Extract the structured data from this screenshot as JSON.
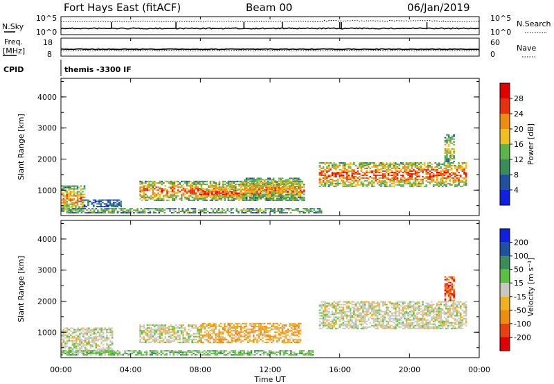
{
  "header": {
    "station": "Fort Hays East (fitACF)",
    "beam": "Beam 00",
    "date": "06/Jan/2019"
  },
  "strips": {
    "nsky_label": "N.Sky",
    "nsearch_label": "N.Search",
    "noise_scale_top": "10^5",
    "noise_scale_bottom": "10^0",
    "freq_label_1": "Freq.",
    "freq_label_2": "[MHz]",
    "freq_top": "18",
    "freq_bottom": "8",
    "nave_label": "Nave",
    "nave_top": "60",
    "nave_bottom": "0",
    "cpid_label": "CPID",
    "cpid_value": "themis -3300 IF"
  },
  "chart_data": [
    {
      "type": "heatmap",
      "name_in_plot": "power",
      "ylabel": "Slant Range [km]",
      "yticks": [
        "1000",
        "2000",
        "3000",
        "4000"
      ],
      "ylim": [
        180,
        4600
      ],
      "xlim": [
        0,
        24
      ],
      "colorbar_label": "Power [dB]",
      "colorbar_ticks": [
        "4",
        "8",
        "12",
        "16",
        "20",
        "24",
        "28"
      ],
      "colors": [
        "#1020e0",
        "#2050a0",
        "#3a8c5a",
        "#5cb44a",
        "#f0c020",
        "#f08c10",
        "#e83010",
        "#e00000"
      ],
      "scatter_regions": [
        {
          "t_start": 0.0,
          "t_end": 1.4,
          "r_min": 300,
          "r_max": 1150,
          "level": 0.65
        },
        {
          "t_start": 1.2,
          "t_end": 3.5,
          "r_min": 450,
          "r_max": 700,
          "level": 0.25
        },
        {
          "t_start": 4.5,
          "t_end": 14.0,
          "r_min": 650,
          "r_max": 1300,
          "level": 0.7
        },
        {
          "t_start": 8.0,
          "t_end": 11.5,
          "r_min": 750,
          "r_max": 1050,
          "level": 0.9
        },
        {
          "t_start": 10.5,
          "t_end": 13.8,
          "r_min": 700,
          "r_max": 1400,
          "level": 0.6
        },
        {
          "t_start": 0.0,
          "t_end": 15.0,
          "r_min": 250,
          "r_max": 420,
          "level": 0.5
        },
        {
          "t_start": 14.8,
          "t_end": 23.3,
          "r_min": 1100,
          "r_max": 1900,
          "level": 0.75
        },
        {
          "t_start": 22.0,
          "t_end": 22.6,
          "r_min": 1900,
          "r_max": 2800,
          "level": 0.55
        }
      ]
    },
    {
      "type": "heatmap",
      "name_in_plot": "velocity",
      "ylabel": "Slant Range [km]",
      "yticks": [
        "1000",
        "2000",
        "3000",
        "4000"
      ],
      "ylim": [
        180,
        4600
      ],
      "xlim": [
        0,
        24
      ],
      "colorbar_label": "Velocity [m s⁻¹]",
      "colorbar_ticks": [
        "200",
        "100",
        "50",
        "15",
        "-15",
        "-50",
        "-100",
        "-200"
      ],
      "colors": [
        "#1020e0",
        "#2050a0",
        "#3a8c5a",
        "#5cc040",
        "#c8c8c0",
        "#f0b020",
        "#f08c10",
        "#e84010",
        "#e00000"
      ],
      "scatter_regions": [
        {
          "t_start": 0.0,
          "t_end": 3.0,
          "r_min": 300,
          "r_max": 1150,
          "class": "grey"
        },
        {
          "t_start": 4.5,
          "t_end": 8.0,
          "r_min": 650,
          "r_max": 1250,
          "class": "grey"
        },
        {
          "t_start": 8.0,
          "t_end": 13.8,
          "r_min": 650,
          "r_max": 1300,
          "class": "orange"
        },
        {
          "t_start": 0.0,
          "t_end": 14.5,
          "r_min": 250,
          "r_max": 420,
          "class": "green"
        },
        {
          "t_start": 14.8,
          "t_end": 23.3,
          "r_min": 1100,
          "r_max": 2000,
          "class": "grey"
        },
        {
          "t_start": 22.0,
          "t_end": 22.6,
          "r_min": 2000,
          "r_max": 2800,
          "class": "red"
        }
      ]
    }
  ],
  "xaxis": {
    "ticks": [
      "00:00",
      "04:00",
      "08:00",
      "12:00",
      "16:00",
      "20:00",
      "00:00"
    ],
    "label": "Time UT"
  }
}
